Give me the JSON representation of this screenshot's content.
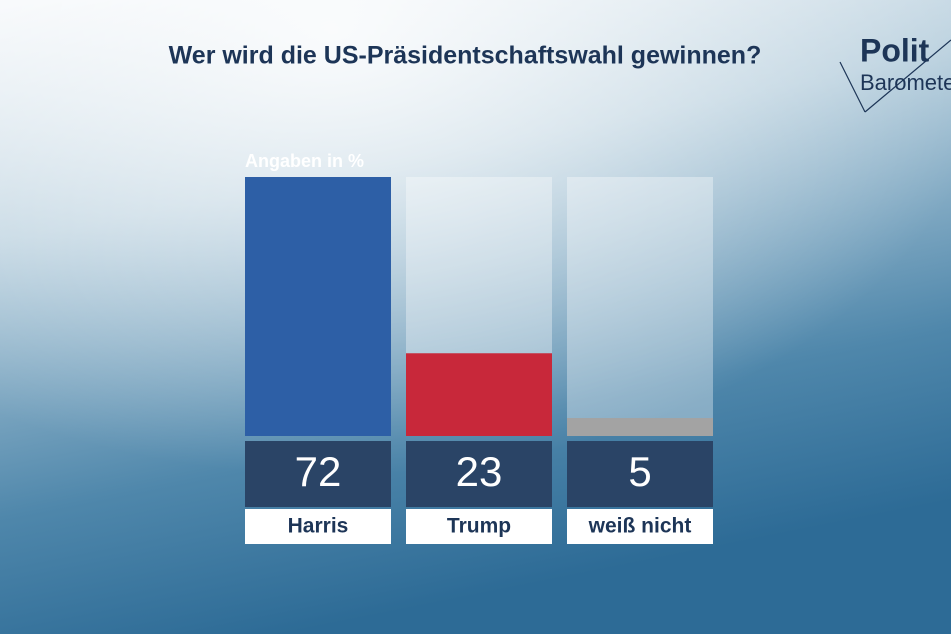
{
  "chart_data": {
    "type": "bar",
    "title": "Wer wird die US-Präsidentschaftswahl gewinnen?",
    "subtitle": "Angaben in %",
    "logo": [
      "Polit",
      "Barometer"
    ],
    "categories": [
      "Harris",
      "Trump",
      "weiß nicht"
    ],
    "values": [
      72,
      23,
      5
    ],
    "colors": [
      "#2d5fa6",
      "#c8283a",
      "#a3a3a3"
    ],
    "ylim": [
      0,
      72
    ]
  }
}
